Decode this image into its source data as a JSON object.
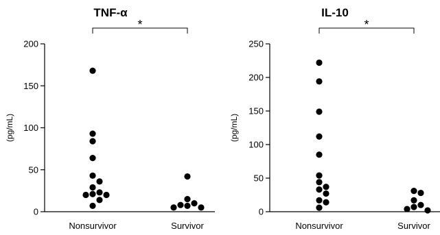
{
  "chart_data": [
    {
      "type": "scatter",
      "title": "TNF-α",
      "ylabel": "(pg/mL)",
      "xlabel": "",
      "ylim": [
        0,
        200
      ],
      "yticks": [
        0,
        50,
        100,
        150,
        200
      ],
      "categories": [
        "Nonsurvivor",
        "Survivor"
      ],
      "significance": "*",
      "grid": false,
      "series": [
        {
          "category": "Nonsurvivor",
          "values": [
            168,
            93,
            84,
            64,
            43,
            36,
            29,
            23,
            21,
            20,
            20,
            14,
            7
          ]
        },
        {
          "category": "Survivor",
          "values": [
            42,
            15,
            10,
            8,
            7,
            5,
            5
          ]
        }
      ]
    },
    {
      "type": "scatter",
      "title": "IL-10",
      "ylabel": "(pg/mL)",
      "xlabel": "",
      "ylim": [
        0,
        250
      ],
      "yticks": [
        0,
        50,
        100,
        150,
        200,
        250
      ],
      "categories": [
        "Nonsurvivor",
        "Survivor"
      ],
      "significance": "*",
      "grid": false,
      "series": [
        {
          "category": "Nonsurvivor",
          "values": [
            222,
            194,
            149,
            112,
            85,
            54,
            44,
            37,
            33,
            27,
            17,
            14,
            6
          ]
        },
        {
          "category": "Survivor",
          "values": [
            31,
            28,
            17,
            10,
            7,
            4,
            2
          ]
        }
      ]
    }
  ]
}
